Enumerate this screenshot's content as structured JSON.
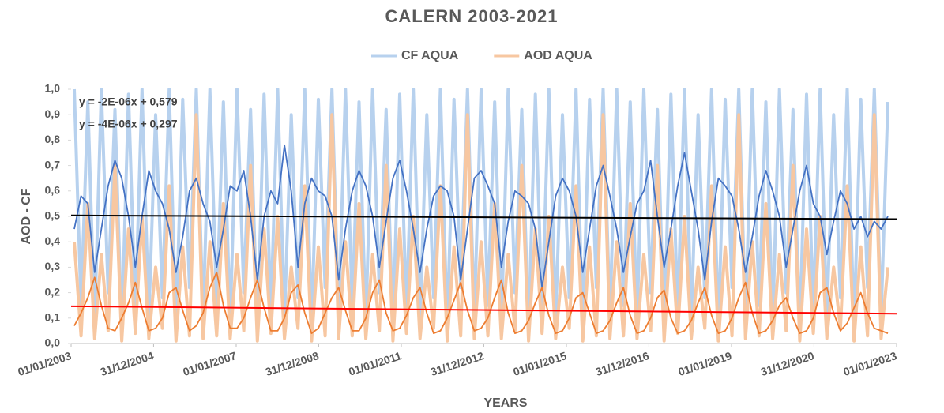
{
  "chart_data": {
    "type": "line",
    "title": "CALERN 2003-2021",
    "xlabel": "YEARS",
    "ylabel": "AOD - CF",
    "xlim": [
      37622,
      44927
    ],
    "xticks": [
      {
        "value": 37622,
        "label": "01/01/2003"
      },
      {
        "value": 38352,
        "label": "31/12/2004"
      },
      {
        "value": 39083,
        "label": "01/01/2007"
      },
      {
        "value": 39813,
        "label": "31/12/2008"
      },
      {
        "value": 40544,
        "label": "01/01/2011"
      },
      {
        "value": 41274,
        "label": "31/12/2012"
      },
      {
        "value": 42005,
        "label": "01/01/2015"
      },
      {
        "value": 42735,
        "label": "31/12/2016"
      },
      {
        "value": 43466,
        "label": "01/01/2019"
      },
      {
        "value": 44196,
        "label": "31/12/2020"
      },
      {
        "value": 44927,
        "label": "01/01/2023"
      }
    ],
    "ylim": [
      0,
      1
    ],
    "yticks": [
      {
        "value": 0,
        "label": "0,0"
      },
      {
        "value": 0.1,
        "label": "0,1"
      },
      {
        "value": 0.2,
        "label": "0,2"
      },
      {
        "value": 0.3,
        "label": "0,3"
      },
      {
        "value": 0.4,
        "label": "0,4"
      },
      {
        "value": 0.5,
        "label": "0,5"
      },
      {
        "value": 0.6,
        "label": "0,6"
      },
      {
        "value": 0.7,
        "label": "0,7"
      },
      {
        "value": 0.8,
        "label": "0,8"
      },
      {
        "value": 0.9,
        "label": "0,9"
      },
      {
        "value": 1,
        "label": "1,0"
      }
    ],
    "grid": false,
    "legend": "top",
    "x": [
      37650,
      37710,
      37770,
      37830,
      37890,
      37950,
      38010,
      38070,
      38130,
      38190,
      38250,
      38310,
      38370,
      38430,
      38490,
      38550,
      38610,
      38670,
      38730,
      38790,
      38850,
      38910,
      38970,
      39030,
      39090,
      39150,
      39210,
      39270,
      39330,
      39390,
      39450,
      39510,
      39570,
      39630,
      39690,
      39750,
      39810,
      39870,
      39930,
      39990,
      40050,
      40110,
      40170,
      40230,
      40290,
      40350,
      40410,
      40470,
      40530,
      40590,
      40650,
      40710,
      40770,
      40830,
      40890,
      40950,
      41010,
      41070,
      41130,
      41190,
      41250,
      41310,
      41370,
      41430,
      41490,
      41550,
      41610,
      41670,
      41730,
      41790,
      41850,
      41910,
      41970,
      42030,
      42090,
      42150,
      42210,
      42270,
      42330,
      42390,
      42450,
      42510,
      42570,
      42630,
      42690,
      42750,
      42810,
      42870,
      42930,
      42990,
      43050,
      43110,
      43170,
      43230,
      43290,
      43350,
      43410,
      43470,
      43530,
      43590,
      43650,
      43710,
      43770,
      43830,
      43890,
      43950,
      44010,
      44070,
      44130,
      44190,
      44250,
      44310,
      44370,
      44430,
      44490,
      44550,
      44610,
      44670,
      44730,
      44790,
      44850
    ],
    "series": [
      {
        "name": "CF AQUA",
        "color": "#b7d1ee",
        "width": 4,
        "values": [
          1,
          0.15,
          0.95,
          0.08,
          1,
          0.2,
          0.92,
          0.05,
          0.98,
          0.12,
          1,
          0.1,
          0.9,
          0.18,
          1,
          0.06,
          0.96,
          0.22,
          1,
          0.1,
          1,
          0.15,
          0.95,
          0.08,
          1,
          0.2,
          0.92,
          0.05,
          0.98,
          0.12,
          1,
          0.1,
          0.9,
          0.18,
          1,
          0.06,
          0.96,
          0.22,
          1,
          0.1,
          1,
          0.15,
          0.95,
          0.08,
          1,
          0.2,
          0.92,
          0.05,
          0.98,
          0.12,
          1,
          0.1,
          0.9,
          0.18,
          1,
          0.06,
          0.96,
          0.22,
          1,
          0.1,
          1,
          0.15,
          0.95,
          0.08,
          1,
          0.2,
          0.92,
          0.05,
          0.98,
          0.12,
          1,
          0.1,
          0.9,
          0.18,
          1,
          0.06,
          0.96,
          0.22,
          1,
          0.1,
          1,
          0.15,
          0.95,
          0.08,
          1,
          0.2,
          0.92,
          0.05,
          0.98,
          0.12,
          1,
          0.1,
          0.9,
          0.18,
          1,
          0.06,
          0.96,
          0.22,
          1,
          0.1,
          1,
          0.15,
          0.95,
          0.08,
          1,
          0.2,
          0.92,
          0.05,
          0.98,
          0.12,
          1,
          0.1,
          0.9,
          0.18,
          1,
          0.06,
          0.96,
          0.22,
          1,
          0.1,
          0.95
        ]
      },
      {
        "name": "AOD AQUA",
        "color": "#f7c7a1",
        "width": 4,
        "values": [
          0.4,
          0.03,
          0.55,
          0.02,
          0.35,
          0.05,
          0.7,
          0.01,
          0.45,
          0.04,
          0.5,
          0.02,
          0.3,
          0.06,
          0.62,
          0.01,
          0.38,
          0.03,
          0.9,
          0.02,
          0.4,
          0.03,
          0.55,
          0.02,
          0.35,
          0.05,
          0.7,
          0.01,
          0.45,
          0.04,
          0.5,
          0.02,
          0.3,
          0.06,
          0.62,
          0.01,
          0.38,
          0.03,
          0.9,
          0.02,
          0.4,
          0.03,
          0.55,
          0.02,
          0.35,
          0.05,
          0.7,
          0.01,
          0.45,
          0.04,
          0.5,
          0.02,
          0.3,
          0.06,
          0.62,
          0.01,
          0.38,
          0.03,
          0.9,
          0.02,
          0.4,
          0.03,
          0.55,
          0.02,
          0.35,
          0.05,
          0.7,
          0.01,
          0.45,
          0.04,
          0.5,
          0.02,
          0.3,
          0.06,
          0.62,
          0.01,
          0.38,
          0.03,
          0.9,
          0.02,
          0.4,
          0.03,
          0.55,
          0.02,
          0.35,
          0.05,
          0.7,
          0.01,
          0.45,
          0.04,
          0.5,
          0.02,
          0.3,
          0.06,
          0.62,
          0.01,
          0.38,
          0.03,
          0.9,
          0.02,
          0.4,
          0.03,
          0.55,
          0.02,
          0.35,
          0.05,
          0.7,
          0.01,
          0.45,
          0.04,
          0.5,
          0.02,
          0.3,
          0.06,
          0.62,
          0.01,
          0.38,
          0.03,
          0.9,
          0.02,
          0.3
        ]
      },
      {
        "color": "#4472c4",
        "width": 1.8,
        "values": [
          0.45,
          0.58,
          0.55,
          0.28,
          0.45,
          0.62,
          0.72,
          0.65,
          0.5,
          0.3,
          0.5,
          0.68,
          0.6,
          0.55,
          0.45,
          0.28,
          0.42,
          0.6,
          0.65,
          0.55,
          0.48,
          0.3,
          0.45,
          0.62,
          0.6,
          0.68,
          0.5,
          0.25,
          0.5,
          0.6,
          0.55,
          0.78,
          0.6,
          0.3,
          0.55,
          0.65,
          0.6,
          0.58,
          0.5,
          0.25,
          0.45,
          0.6,
          0.68,
          0.62,
          0.5,
          0.3,
          0.48,
          0.65,
          0.72,
          0.6,
          0.45,
          0.28,
          0.45,
          0.58,
          0.62,
          0.6,
          0.5,
          0.25,
          0.45,
          0.65,
          0.68,
          0.62,
          0.55,
          0.3,
          0.48,
          0.6,
          0.58,
          0.55,
          0.45,
          0.22,
          0.4,
          0.58,
          0.65,
          0.6,
          0.5,
          0.28,
          0.45,
          0.62,
          0.7,
          0.58,
          0.45,
          0.28,
          0.42,
          0.55,
          0.6,
          0.72,
          0.5,
          0.3,
          0.45,
          0.62,
          0.75,
          0.6,
          0.45,
          0.25,
          0.48,
          0.65,
          0.62,
          0.58,
          0.45,
          0.28,
          0.42,
          0.58,
          0.68,
          0.6,
          0.5,
          0.3,
          0.45,
          0.6,
          0.7,
          0.55,
          0.5,
          0.35,
          0.48,
          0.6,
          0.55,
          0.45,
          0.5,
          0.42,
          0.48,
          0.45,
          0.5
        ]
      },
      {
        "color": "#ed7d31",
        "width": 1.8,
        "values": [
          0.07,
          0.12,
          0.18,
          0.26,
          0.15,
          0.06,
          0.05,
          0.1,
          0.16,
          0.24,
          0.14,
          0.05,
          0.06,
          0.1,
          0.2,
          0.22,
          0.13,
          0.05,
          0.07,
          0.12,
          0.22,
          0.28,
          0.15,
          0.06,
          0.06,
          0.1,
          0.18,
          0.25,
          0.14,
          0.05,
          0.05,
          0.1,
          0.2,
          0.23,
          0.12,
          0.04,
          0.06,
          0.12,
          0.18,
          0.22,
          0.13,
          0.05,
          0.05,
          0.1,
          0.2,
          0.25,
          0.12,
          0.05,
          0.06,
          0.11,
          0.18,
          0.22,
          0.12,
          0.04,
          0.05,
          0.1,
          0.17,
          0.24,
          0.13,
          0.05,
          0.06,
          0.1,
          0.18,
          0.25,
          0.12,
          0.04,
          0.05,
          0.09,
          0.16,
          0.22,
          0.11,
          0.04,
          0.05,
          0.1,
          0.18,
          0.2,
          0.12,
          0.04,
          0.05,
          0.09,
          0.16,
          0.22,
          0.11,
          0.04,
          0.05,
          0.1,
          0.18,
          0.21,
          0.1,
          0.04,
          0.05,
          0.09,
          0.16,
          0.22,
          0.11,
          0.04,
          0.05,
          0.1,
          0.18,
          0.24,
          0.12,
          0.04,
          0.05,
          0.09,
          0.15,
          0.18,
          0.1,
          0.04,
          0.05,
          0.1,
          0.2,
          0.22,
          0.12,
          0.05,
          0.08,
          0.14,
          0.2,
          0.12,
          0.06,
          0.05,
          0.04
        ]
      }
    ],
    "trendlines": [
      {
        "label": "y = -2E-06x + 0,579",
        "slope": -2e-06,
        "intercept": 0.579,
        "color": "#000000"
      },
      {
        "label": "y = -4E-06x + 0,297",
        "slope": -4e-06,
        "intercept": 0.297,
        "color": "#ff0000"
      }
    ]
  }
}
